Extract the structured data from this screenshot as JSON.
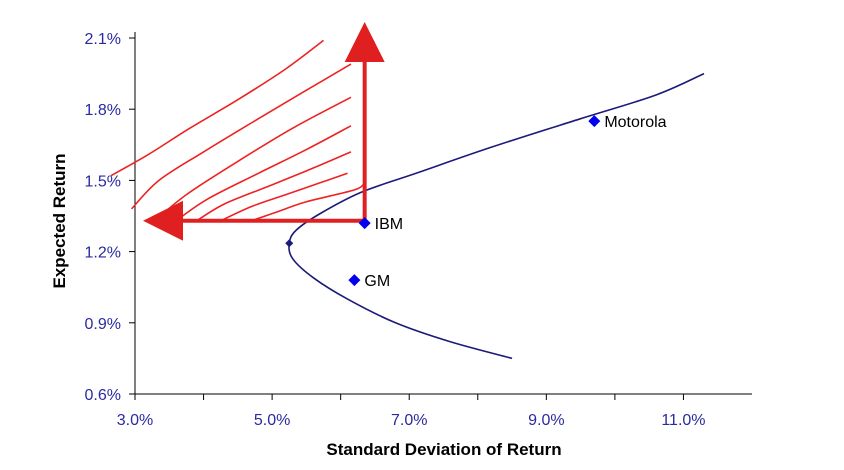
{
  "chart_data": {
    "type": "scatter",
    "title": "",
    "xlabel": "Standard Deviation of Return",
    "ylabel": "Expected Return",
    "xlim": [
      3.0,
      12.0
    ],
    "ylim": [
      0.6,
      2.1
    ],
    "x_ticks": [
      3.0,
      5.0,
      7.0,
      9.0,
      11.0
    ],
    "x_tick_labels": [
      "3.0%",
      "5.0%",
      "7.0%",
      "9.0%",
      "11.0%"
    ],
    "y_ticks": [
      0.6,
      0.9,
      1.2,
      1.5,
      1.8,
      2.1
    ],
    "y_tick_labels": [
      "0.6%",
      "0.9%",
      "1.2%",
      "1.5%",
      "1.8%",
      "2.1%"
    ],
    "grid": false,
    "legend": false,
    "colors": {
      "axis_text": "#2a2aa0",
      "frontier": "#1a1a7a",
      "points": "#0000ee",
      "indifference": "#ee2222",
      "arrows": "#e02020"
    },
    "points": [
      {
        "label": "Motorola",
        "x": 9.7,
        "y": 1.75
      },
      {
        "label": "IBM",
        "x": 6.35,
        "y": 1.32
      },
      {
        "label": "GM",
        "x": 6.2,
        "y": 1.08
      },
      {
        "label": "",
        "x": 5.25,
        "y": 1.235
      }
    ],
    "frontier_curve": [
      {
        "x": 8.5,
        "y": 0.75
      },
      {
        "x": 7.6,
        "y": 0.82
      },
      {
        "x": 6.8,
        "y": 0.9
      },
      {
        "x": 6.1,
        "y": 1.0
      },
      {
        "x": 5.6,
        "y": 1.09
      },
      {
        "x": 5.3,
        "y": 1.17
      },
      {
        "x": 5.25,
        "y": 1.235
      },
      {
        "x": 5.35,
        "y": 1.29
      },
      {
        "x": 5.7,
        "y": 1.36
      },
      {
        "x": 6.3,
        "y": 1.45
      },
      {
        "x": 7.1,
        "y": 1.53
      },
      {
        "x": 8.2,
        "y": 1.64
      },
      {
        "x": 9.5,
        "y": 1.76
      },
      {
        "x": 10.6,
        "y": 1.86
      },
      {
        "x": 11.3,
        "y": 1.95
      }
    ],
    "indifference_curves": [
      [
        {
          "x": 2.65,
          "y": 1.52
        },
        {
          "x": 3.2,
          "y": 1.61
        },
        {
          "x": 3.8,
          "y": 1.72
        },
        {
          "x": 4.5,
          "y": 1.84
        },
        {
          "x": 5.2,
          "y": 1.97
        },
        {
          "x": 5.75,
          "y": 2.09
        }
      ],
      [
        {
          "x": 2.95,
          "y": 1.38
        },
        {
          "x": 3.35,
          "y": 1.5
        },
        {
          "x": 4.0,
          "y": 1.62
        },
        {
          "x": 4.8,
          "y": 1.76
        },
        {
          "x": 5.5,
          "y": 1.88
        },
        {
          "x": 6.15,
          "y": 1.99
        }
      ],
      [
        {
          "x": 3.25,
          "y": 1.32
        },
        {
          "x": 3.75,
          "y": 1.44
        },
        {
          "x": 4.5,
          "y": 1.58
        },
        {
          "x": 5.3,
          "y": 1.72
        },
        {
          "x": 6.15,
          "y": 1.85
        }
      ],
      [
        {
          "x": 3.6,
          "y": 1.33
        },
        {
          "x": 4.05,
          "y": 1.42
        },
        {
          "x": 4.8,
          "y": 1.53
        },
        {
          "x": 5.5,
          "y": 1.63
        },
        {
          "x": 6.15,
          "y": 1.73
        }
      ],
      [
        {
          "x": 3.9,
          "y": 1.33
        },
        {
          "x": 4.3,
          "y": 1.4
        },
        {
          "x": 4.9,
          "y": 1.47
        },
        {
          "x": 5.5,
          "y": 1.54
        },
        {
          "x": 6.15,
          "y": 1.62
        }
      ],
      [
        {
          "x": 4.25,
          "y": 1.33
        },
        {
          "x": 4.7,
          "y": 1.39
        },
        {
          "x": 5.2,
          "y": 1.44
        },
        {
          "x": 5.7,
          "y": 1.49
        },
        {
          "x": 6.1,
          "y": 1.53
        }
      ],
      [
        {
          "x": 4.7,
          "y": 1.33
        },
        {
          "x": 5.1,
          "y": 1.37
        },
        {
          "x": 5.5,
          "y": 1.41
        },
        {
          "x": 6.2,
          "y": 1.46
        },
        {
          "x": 6.35,
          "y": 1.49
        }
      ]
    ],
    "arrows": [
      {
        "from": {
          "x": 6.35,
          "y": 1.33
        },
        "to": {
          "x": 3.35,
          "y": 1.33
        }
      },
      {
        "from": {
          "x": 6.35,
          "y": 1.33
        },
        "to": {
          "x": 6.35,
          "y": 2.1
        }
      }
    ]
  }
}
